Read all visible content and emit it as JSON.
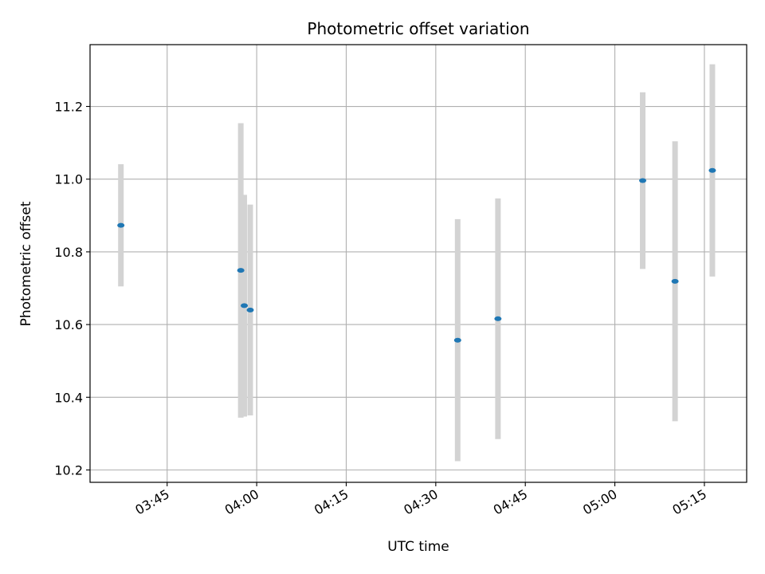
{
  "chart_data": {
    "type": "scatter",
    "title": "Photometric offset variation",
    "xlabel": "UTC time",
    "ylabel": "Photometric offset",
    "x_tick_labels": [
      "03:45",
      "04:00",
      "04:15",
      "04:30",
      "04:45",
      "05:00",
      "05:15"
    ],
    "x_tick_minutes": [
      225,
      240,
      255,
      270,
      285,
      300,
      315
    ],
    "y_tick_labels": [
      "10.2",
      "10.4",
      "10.6",
      "10.8",
      "11.0",
      "11.2"
    ],
    "y_tick_values": [
      10.2,
      10.4,
      10.6,
      10.8,
      11.0,
      11.2
    ],
    "xlim": [
      "03:32:05",
      "05:22:05"
    ],
    "ylim": [
      10.166,
      11.37
    ],
    "grid": true,
    "errorbar_color": "#d3d3d3",
    "marker_color": "#1f77b4",
    "series": [
      {
        "points": [
          {
            "x": "03:37:15",
            "y": 10.873,
            "err": 0.168
          },
          {
            "x": "03:57:20",
            "y": 10.749,
            "err": 0.405
          },
          {
            "x": "03:57:55",
            "y": 10.652,
            "err": 0.305
          },
          {
            "x": "03:58:55",
            "y": 10.64,
            "err": 0.29
          },
          {
            "x": "04:33:40",
            "y": 10.557,
            "err": 0.333
          },
          {
            "x": "04:40:25",
            "y": 10.616,
            "err": 0.331
          },
          {
            "x": "05:04:40",
            "y": 10.996,
            "err": 0.243
          },
          {
            "x": "05:10:05",
            "y": 10.719,
            "err": 0.385
          },
          {
            "x": "05:16:20",
            "y": 11.024,
            "err": 0.292
          }
        ]
      }
    ]
  }
}
